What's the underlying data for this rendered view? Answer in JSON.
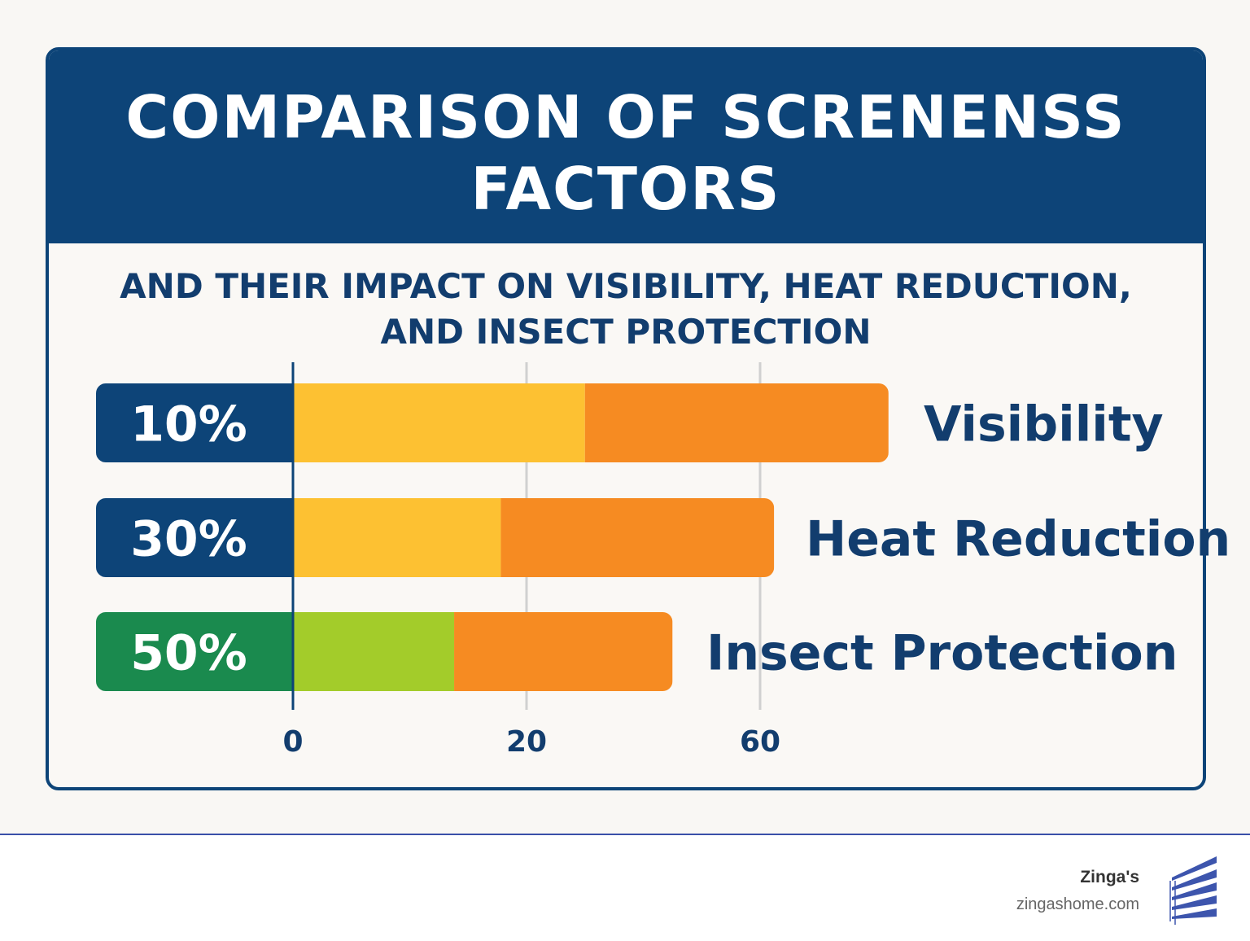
{
  "header": {
    "title_line1": "COMPARISON OF SCRENENSS",
    "title_line2": "FACTORS"
  },
  "subtitle": {
    "line1": "AND THEIR IMPACT ON VISIBILITY, HEAT REDUCTION,",
    "line2": "AND INSECT PROTECTION"
  },
  "chart_data": {
    "type": "bar",
    "orientation": "horizontal",
    "stacked": true,
    "title": "COMPARISON OF SCRENENSS FACTORS",
    "subtitle": "AND THEIR IMPACT ON VISIBILITY, HEAT REDUCTION, AND INSECT PROTECTION",
    "categories": [
      "Visibility",
      "Heat Reduction",
      "Insect Protection"
    ],
    "badges": [
      "10%",
      "30%",
      "50%"
    ],
    "badge_colors": [
      "#0d4478",
      "#0d4478",
      "#1a8a4e"
    ],
    "segments": [
      {
        "values": [
          25,
          17.8,
          13.8
        ],
        "colors": [
          "#fdc132",
          "#fdc132",
          "#a3cc2a"
        ]
      },
      {
        "values": [
          26,
          23.4,
          18.7
        ],
        "colors": [
          "#f68b22",
          "#f68b22",
          "#f68b22"
        ]
      }
    ],
    "x_ticks": [
      "0",
      "20",
      "60"
    ],
    "grid": true,
    "xlabel": "",
    "ylabel": ""
  },
  "colors": {
    "navy": "#0d4478",
    "text": "#123d6e",
    "grid": "#d0d0d0"
  },
  "footer": {
    "brand": "Zinga's",
    "url": "zingashome.com",
    "logo_icon": "window-blinds-icon"
  }
}
